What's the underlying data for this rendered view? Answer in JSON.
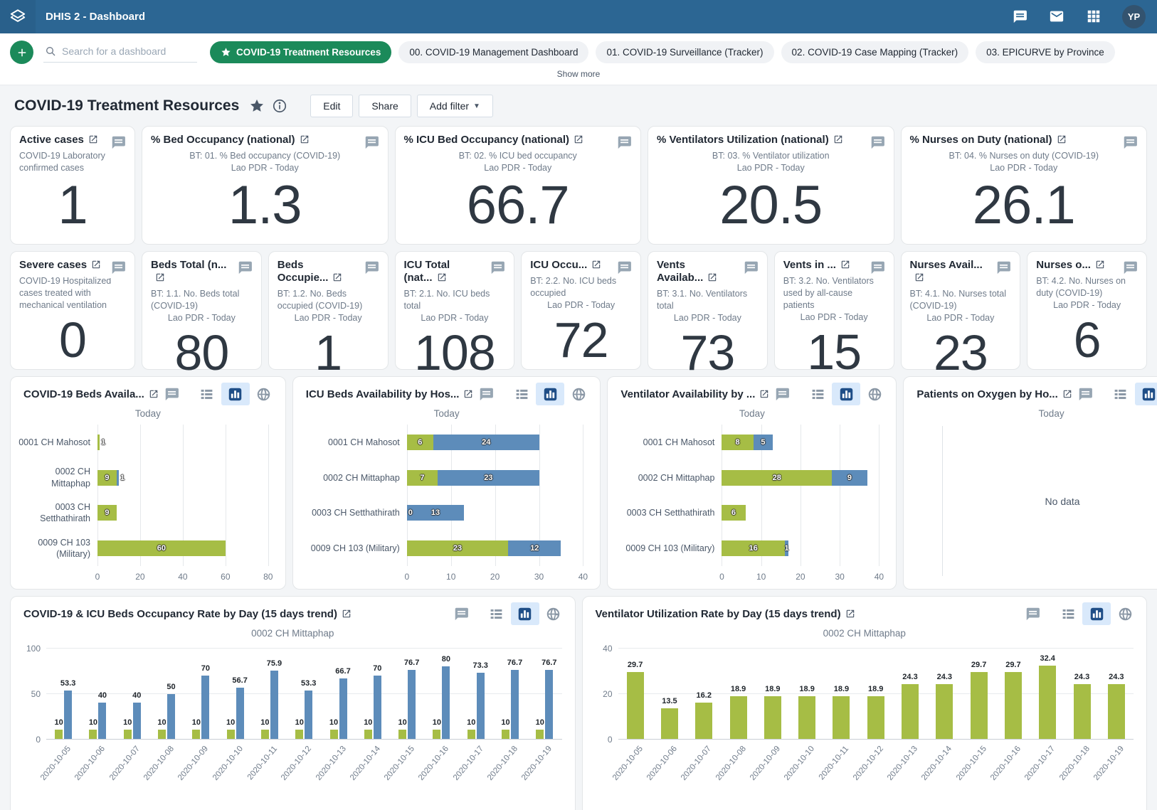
{
  "topbar": {
    "title": "DHIS 2 - Dashboard",
    "avatar": "YP"
  },
  "nav": {
    "search_placeholder": "Search for a dashboard",
    "selected_chip": "COVID-19 Treatment Resources",
    "chips": [
      "00. COVID-19 Management Dashboard",
      "01. COVID-19 Surveillance (Tracker)",
      "02. COVID-19 Case Mapping (Tracker)",
      "03. EPICURVE by Province"
    ],
    "show_more": "Show more"
  },
  "header": {
    "title": "COVID-19 Treatment Resources",
    "edit": "Edit",
    "share": "Share",
    "add_filter": "Add filter"
  },
  "kpis_row1": [
    {
      "title": "Active cases",
      "sub1": "COVID-19 Laboratory confirmed cases",
      "sub1_align": "left",
      "sub2": "",
      "value": "1"
    },
    {
      "title": "% Bed Occupancy (national)",
      "sub1": "BT: 01. % Bed occupancy (COVID-19)",
      "sub1_align": "center",
      "sub2": "Lao PDR - Today",
      "value": "1.3"
    },
    {
      "title": "% ICU Bed Occupancy (national)",
      "sub1": "BT: 02. % ICU bed occupancy",
      "sub1_align": "center",
      "sub2": "Lao PDR - Today",
      "value": "66.7"
    },
    {
      "title": "% Ventilators Utilization (national)",
      "sub1": "BT: 03. % Ventilator utilization",
      "sub1_align": "center",
      "sub2": "Lao PDR - Today",
      "value": "20.5"
    },
    {
      "title": "% Nurses on Duty (national)",
      "sub1": "BT: 04. % Nurses on duty (COVID-19)",
      "sub1_align": "center",
      "sub2": "Lao PDR - Today",
      "value": "26.1"
    }
  ],
  "kpis_row2": [
    {
      "title": "Severe cases",
      "sub1": "COVID-19 Hospitalized cases treated with mechanical ventilation",
      "sub1_align": "left",
      "sub2": "",
      "value": "0"
    },
    {
      "title": "Beds Total (n...",
      "sub1": "BT: 1.1. No. Beds total (COVID-19)",
      "sub1_align": "left",
      "sub2": "Lao PDR - Today",
      "value": "80"
    },
    {
      "title": "Beds Occupie...",
      "sub1": "BT: 1.2. No. Beds occupied (COVID-19)",
      "sub1_align": "left",
      "sub2": "Lao PDR - Today",
      "value": "1"
    },
    {
      "title": "ICU Total (nat...",
      "sub1": "BT: 2.1. No. ICU beds total",
      "sub1_align": "left",
      "sub2": "Lao PDR - Today",
      "value": "108"
    },
    {
      "title": "ICU Occu...",
      "sub1": "BT: 2.2. No. ICU beds occupied",
      "sub1_align": "left",
      "sub2": "Lao PDR - Today",
      "value": "72"
    },
    {
      "title": "Vents Availab...",
      "sub1": "BT: 3.1. No. Ventilators total",
      "sub1_align": "left",
      "sub2": "Lao PDR - Today",
      "value": "73"
    },
    {
      "title": "Vents in ...",
      "sub1": "BT: 3.2. No. Ventilators used by all-cause patients",
      "sub1_align": "left",
      "sub2": "Lao PDR - Today",
      "value": "15"
    },
    {
      "title": "Nurses Avail...",
      "sub1": "BT: 4.1. No. Nurses total (COVID-19)",
      "sub1_align": "left",
      "sub2": "Lao PDR - Today",
      "value": "23"
    },
    {
      "title": "Nurses o...",
      "sub1": "BT: 4.2. No. Nurses on duty (COVID-19)",
      "sub1_align": "left",
      "sub2": "Lao PDR - Today",
      "value": "6"
    }
  ],
  "hcharts": [
    {
      "title": "COVID-19 Beds Availa...",
      "subtitle": "Today",
      "type": "bar",
      "xmax": 80,
      "ticks": [
        0,
        20,
        40,
        60,
        80
      ],
      "rows": [
        {
          "label": "0001 CH Mahosot",
          "segments": [
            {
              "color": "green",
              "value": 1,
              "label": "1",
              "inside": false
            }
          ]
        },
        {
          "label": "0002 CH Mittaphap",
          "segments": [
            {
              "color": "green",
              "value": 9,
              "label": "9",
              "inside": true
            },
            {
              "color": "blue",
              "value": 1,
              "label": "1",
              "inside": false
            }
          ]
        },
        {
          "label": "0003 CH Setthathirath",
          "segments": [
            {
              "color": "green",
              "value": 9,
              "label": "9",
              "inside": true
            }
          ]
        },
        {
          "label": "0009 CH 103 (Military)",
          "segments": [
            {
              "color": "green",
              "value": 60,
              "label": "60",
              "inside": true
            }
          ]
        }
      ]
    },
    {
      "title": "ICU Beds Availability by Hos...",
      "subtitle": "Today",
      "type": "bar",
      "xmax": 40,
      "ticks": [
        0,
        10,
        20,
        30,
        40
      ],
      "rows": [
        {
          "label": "0001 CH Mahosot",
          "segments": [
            {
              "color": "green",
              "value": 6,
              "label": "6",
              "inside": true
            },
            {
              "color": "blue",
              "value": 24,
              "label": "24",
              "inside": true
            }
          ]
        },
        {
          "label": "0002 CH Mittaphap",
          "segments": [
            {
              "color": "green",
              "value": 7,
              "label": "7",
              "inside": true
            },
            {
              "color": "blue",
              "value": 23,
              "label": "23",
              "inside": true
            }
          ]
        },
        {
          "label": "0003 CH Setthathirath",
          "segments": [
            {
              "color": "green",
              "value": 0,
              "label": "0",
              "inside": false
            },
            {
              "color": "blue",
              "value": 13,
              "label": "13",
              "inside": true
            }
          ]
        },
        {
          "label": "0009 CH 103 (Military)",
          "segments": [
            {
              "color": "green",
              "value": 23,
              "label": "23",
              "inside": true
            },
            {
              "color": "blue",
              "value": 12,
              "label": "12",
              "inside": true
            }
          ]
        }
      ]
    },
    {
      "title": "Ventilator Availability by ...",
      "subtitle": "Today",
      "type": "bar",
      "xmax": 40,
      "ticks": [
        0,
        10,
        20,
        30,
        40
      ],
      "rows": [
        {
          "label": "0001 CH Mahosot",
          "segments": [
            {
              "color": "green",
              "value": 8,
              "label": "8",
              "inside": true
            },
            {
              "color": "blue",
              "value": 5,
              "label": "5",
              "inside": true
            }
          ]
        },
        {
          "label": "0002 CH Mittaphap",
          "segments": [
            {
              "color": "green",
              "value": 28,
              "label": "28",
              "inside": true
            },
            {
              "color": "blue",
              "value": 9,
              "label": "9",
              "inside": true
            }
          ]
        },
        {
          "label": "0003 CH Setthathirath",
          "segments": [
            {
              "color": "green",
              "value": 6,
              "label": "6",
              "inside": true
            }
          ]
        },
        {
          "label": "0009 CH 103 (Military)",
          "segments": [
            {
              "color": "green",
              "value": 16,
              "label": "16",
              "inside": true
            },
            {
              "color": "blue",
              "value": 1,
              "label": "1",
              "inside": true
            }
          ]
        }
      ]
    },
    {
      "title": "Patients on Oxygen by Ho...",
      "subtitle": "Today",
      "type": "bar",
      "no_data": "No data",
      "rows": []
    }
  ],
  "tcharts": [
    {
      "title": "COVID-19 & ICU Beds Occupancy Rate by Day (15 days trend)",
      "subtitle": "0002 CH Mittaphap",
      "type": "bar",
      "ymax": 100,
      "yticks": [
        0,
        50,
        100
      ],
      "dates": [
        "2020-10-05",
        "2020-10-06",
        "2020-10-07",
        "2020-10-08",
        "2020-10-09",
        "2020-10-10",
        "2020-10-11",
        "2020-10-12",
        "2020-10-13",
        "2020-10-14",
        "2020-10-15",
        "2020-10-16",
        "2020-10-17",
        "2020-10-18",
        "2020-10-19"
      ],
      "series": [
        {
          "name": "green",
          "values": [
            10,
            10,
            10,
            10,
            10,
            10,
            10,
            10,
            10,
            10,
            10,
            10,
            10,
            10,
            10
          ]
        },
        {
          "name": "blue",
          "values": [
            53.3,
            40,
            40,
            50,
            70,
            56.7,
            75.9,
            53.3,
            66.7,
            70,
            76.7,
            80,
            73.3,
            76.7,
            76.7
          ]
        }
      ]
    },
    {
      "title": "Ventilator Utilization Rate by Day (15 days trend)",
      "subtitle": "0002 CH Mittaphap",
      "type": "bar",
      "ymax": 40,
      "yticks": [
        0,
        20,
        40
      ],
      "dates": [
        "2020-10-05",
        "2020-10-06",
        "2020-10-07",
        "2020-10-08",
        "2020-10-09",
        "2020-10-10",
        "2020-10-11",
        "2020-10-12",
        "2020-10-13",
        "2020-10-14",
        "2020-10-15",
        "2020-10-16",
        "2020-10-17",
        "2020-10-18",
        "2020-10-19"
      ],
      "series": [
        {
          "name": "green",
          "values": [
            29.7,
            13.5,
            16.2,
            18.9,
            18.9,
            18.9,
            18.9,
            18.9,
            24.3,
            24.3,
            29.7,
            29.7,
            32.4,
            24.3,
            24.3
          ]
        }
      ]
    }
  ],
  "colors": {
    "topbar": "#2c6693",
    "accent_green": "#1b8a5a",
    "bar_green": "#a6bd45",
    "bar_blue": "#5d8cba",
    "toggle_active_bg": "#d9e9fb",
    "toggle_active_icon": "#1f4e87"
  }
}
